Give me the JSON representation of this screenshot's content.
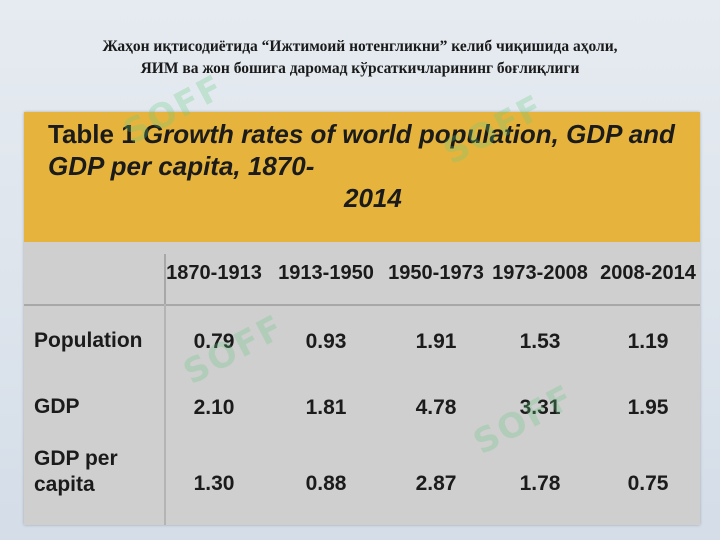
{
  "slide": {
    "title_line1": "Жаҳон иқтисодиётида “Ижтимоий нотенгликни” келиб чиқишида аҳоли,",
    "title_line2": "ЯИМ ва жон бошига даромад кўрсаткичларининг боғлиқлиги"
  },
  "table": {
    "caption_label": "Table 1",
    "caption_text_line1": "Growth rates of world population, GDP and GDP per capita, 1870-",
    "caption_text_line2": "2014",
    "columns": [
      "1870-1913",
      "1913-1950",
      "1950-1973",
      "1973-2008",
      "2008-2014"
    ],
    "rows": [
      {
        "label": "Population",
        "values": [
          "0.79",
          "0.93",
          "1.91",
          "1.53",
          "1.19"
        ]
      },
      {
        "label": "GDP",
        "values": [
          "2.10",
          "1.81",
          "4.78",
          "3.31",
          "1.95"
        ]
      },
      {
        "label_line1": "GDP per",
        "label_line2": "capita",
        "values": [
          "1.30",
          "0.88",
          "2.87",
          "1.78",
          "0.75"
        ]
      }
    ]
  },
  "watermark": {
    "text": "SOFF"
  },
  "colors": {
    "caption_bg": "#e6b43c",
    "table_bg": "#cfcfcf",
    "page_bg": "#dde4ec"
  }
}
